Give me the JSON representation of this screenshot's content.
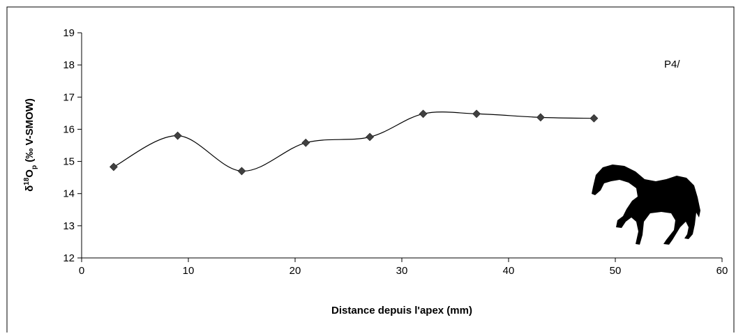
{
  "chart_data": {
    "type": "line",
    "smooth": true,
    "marker": "diamond",
    "title": "",
    "annotation": "P4/",
    "xlabel": "Distance depuis l'apex (mm)",
    "ylabel_parts": {
      "delta": "δ",
      "sup": "18",
      "o": "O",
      "sub": "p",
      "rest": " (‰ V-SMOW)"
    },
    "xlim": [
      0,
      60
    ],
    "ylim": [
      12,
      19
    ],
    "xticks": [
      "0",
      "10",
      "20",
      "30",
      "40",
      "50",
      "60"
    ],
    "yticks": [
      "12",
      "13",
      "14",
      "15",
      "16",
      "17",
      "18",
      "19"
    ],
    "grid": false,
    "series": [
      {
        "x": [
          3,
          9,
          15,
          21,
          27,
          32,
          37,
          43,
          48
        ],
        "values": [
          14.83,
          15.8,
          14.7,
          15.58,
          15.76,
          16.48,
          16.48,
          16.37,
          16.34
        ]
      }
    ],
    "colors": {
      "line": "#000000",
      "marker": "#404040",
      "silhouette": "#000000"
    },
    "icons": [
      "horse-silhouette-icon"
    ]
  }
}
